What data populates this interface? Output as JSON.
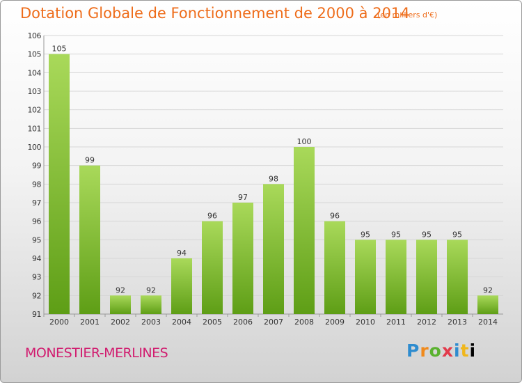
{
  "page": {
    "place_name": "MONESTIER-MERLINES",
    "logo_text": "Proxiti"
  },
  "colors": {
    "title": "#ee6c1a",
    "place": "#d11c6f",
    "bar_light": "#a9d95a",
    "bar_dark": "#5e9e16"
  },
  "chart_data": {
    "type": "bar",
    "title": "Dotation Globale de Fonctionnement de 2000 à 2014",
    "subtitle": "(en milliers d'€)",
    "categories": [
      "2000",
      "2001",
      "2002",
      "2003",
      "2004",
      "2005",
      "2006",
      "2007",
      "2008",
      "2009",
      "2010",
      "2011",
      "2012",
      "2013",
      "2014"
    ],
    "values": [
      105,
      99,
      92,
      92,
      94,
      96,
      97,
      98,
      100,
      96,
      95,
      95,
      95,
      95,
      92
    ],
    "ylim": [
      91,
      106
    ],
    "yticks": [
      91,
      92,
      93,
      94,
      95,
      96,
      97,
      98,
      99,
      100,
      101,
      102,
      103,
      104,
      105,
      106
    ],
    "grid": true,
    "xlabel": "",
    "ylabel": ""
  }
}
